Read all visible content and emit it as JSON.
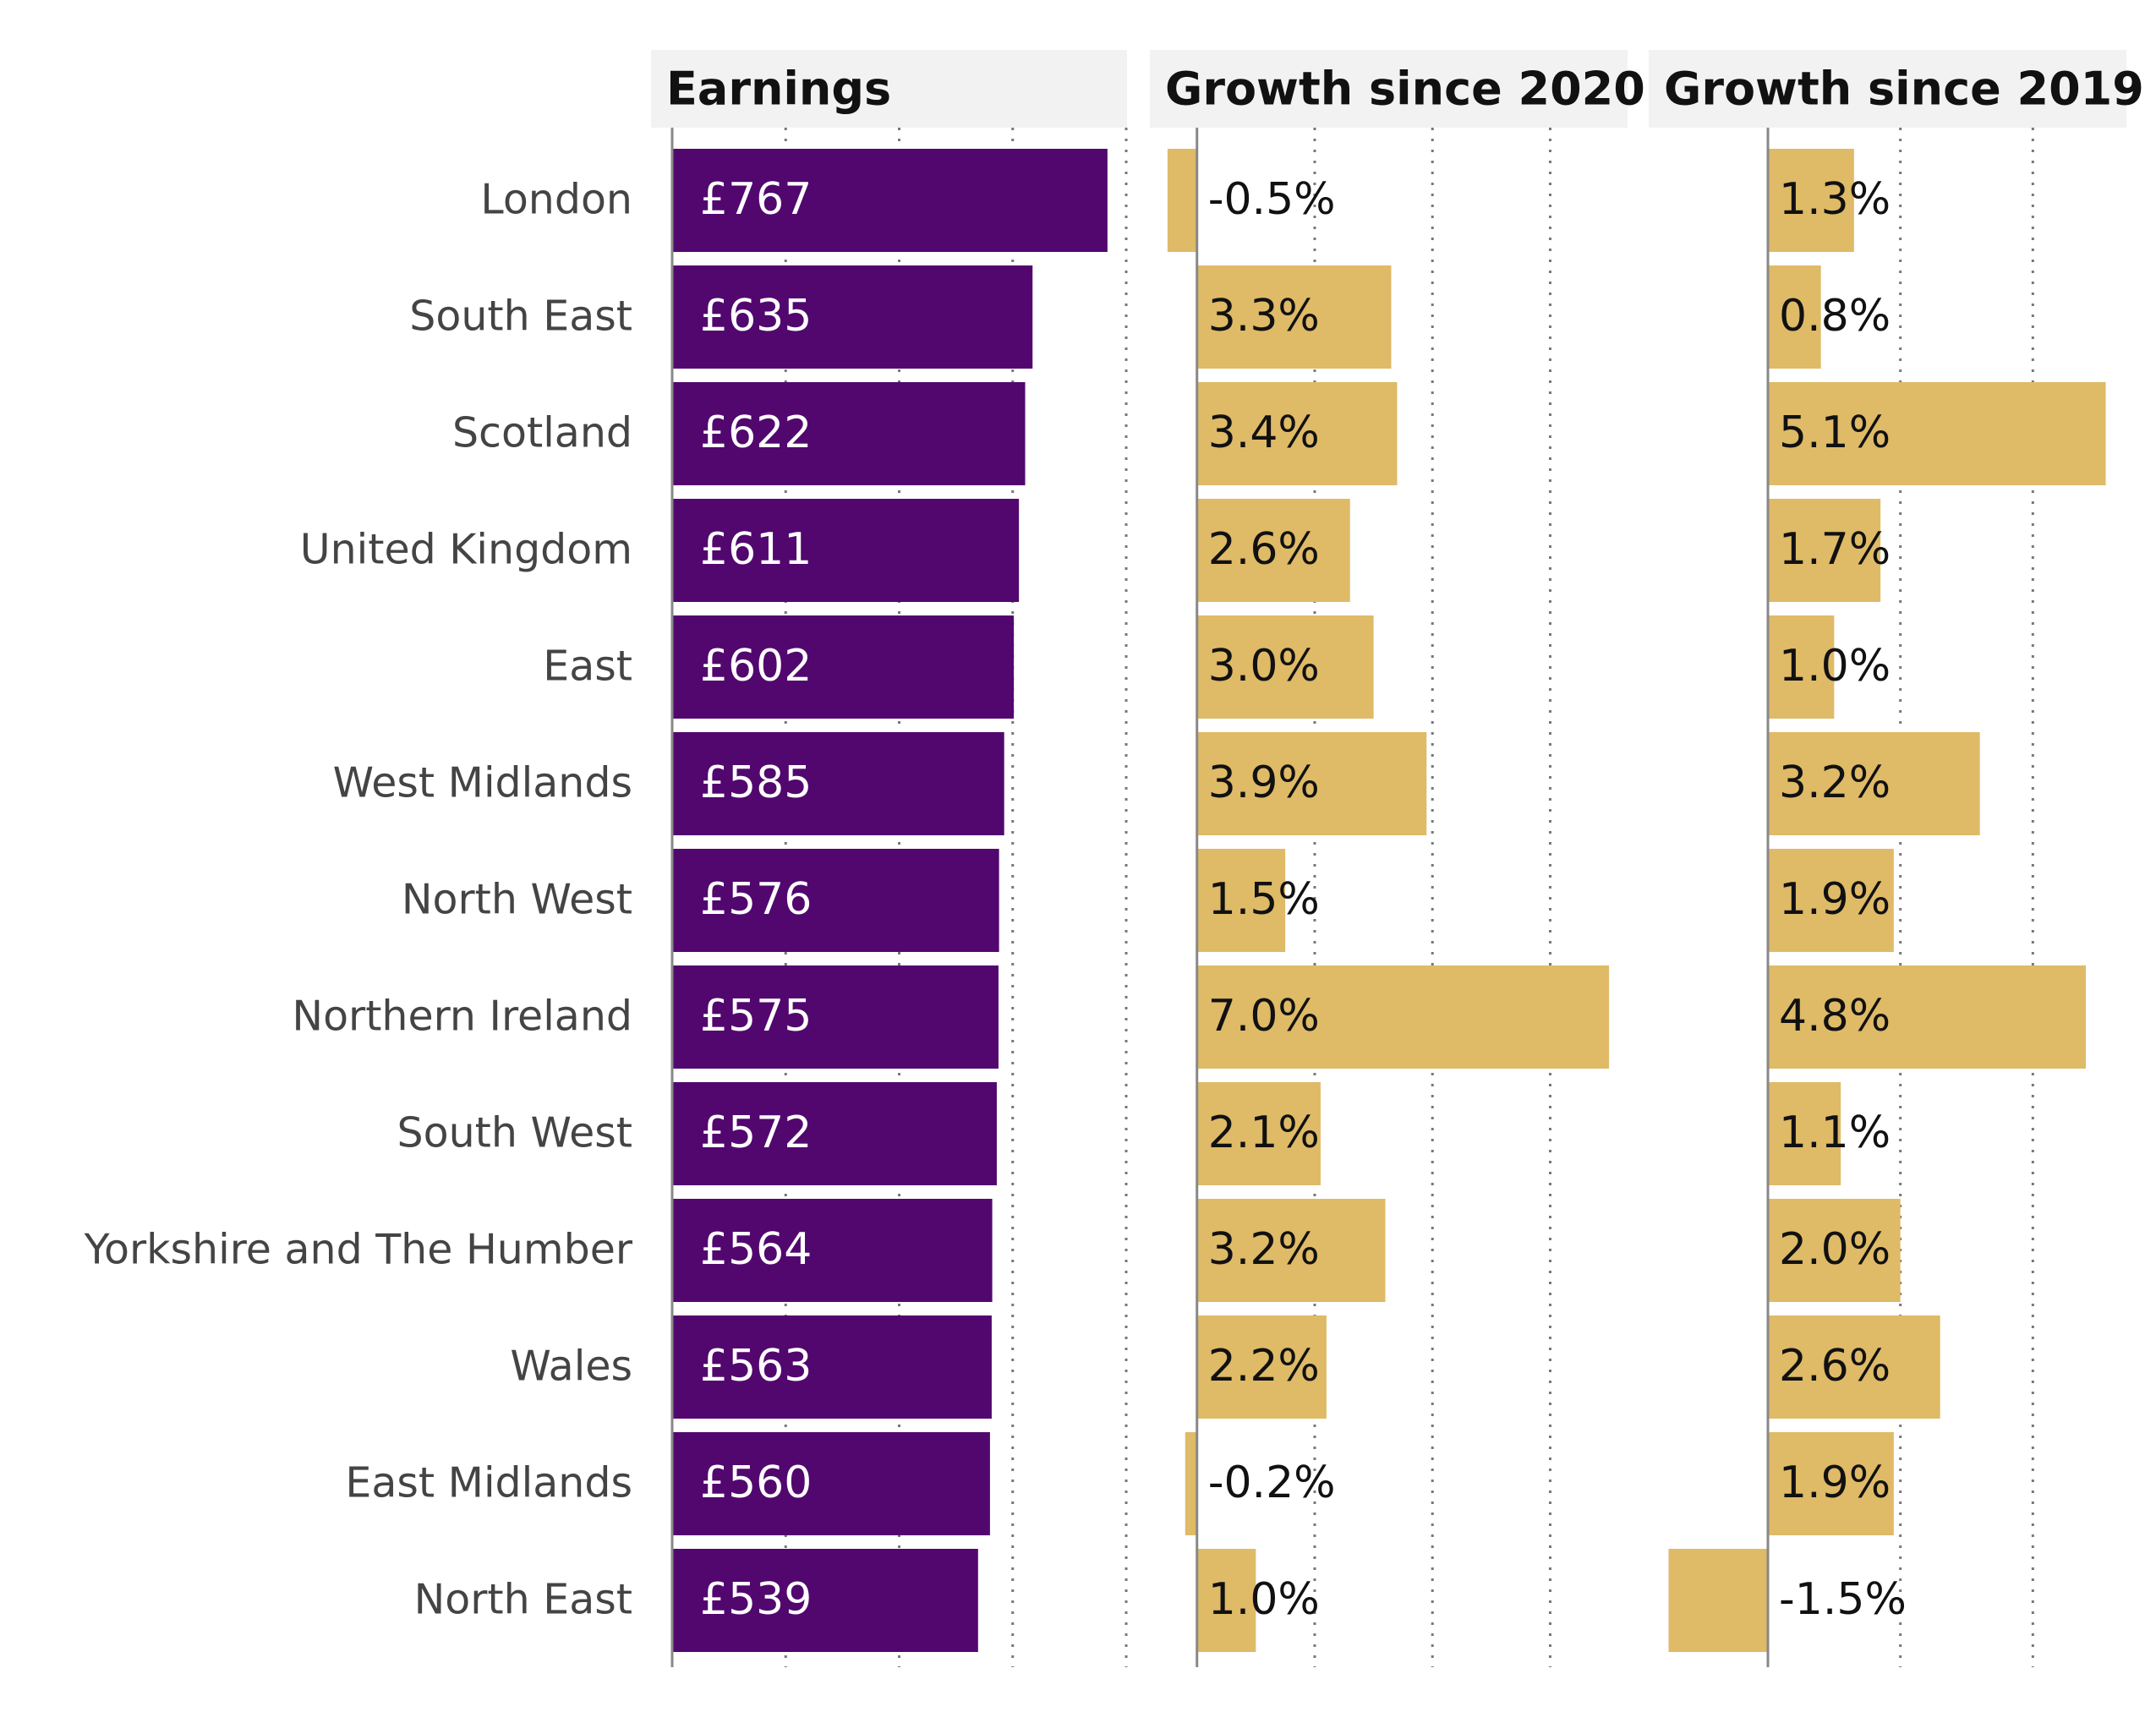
{
  "chart_data": [
    {
      "type": "bar",
      "orientation": "horizontal",
      "title": "Earnings",
      "categories": [
        "London",
        "South East",
        "Scotland",
        "United Kingdom",
        "East",
        "West Midlands",
        "North West",
        "Northern Ireland",
        "South West",
        "Yorkshire and The Humber",
        "Wales",
        "East Midlands",
        "North East"
      ],
      "values": [
        767,
        635,
        622,
        611,
        602,
        585,
        576,
        575,
        572,
        564,
        563,
        560,
        539
      ],
      "value_labels": [
        "£767",
        "£635",
        "£622",
        "£611",
        "£602",
        "£585",
        "£576",
        "£575",
        "£572",
        "£564",
        "£563",
        "£560",
        "£539"
      ],
      "color": "#52076f",
      "label_color": "#ffffff",
      "xlim": [
        0,
        800
      ],
      "xticks": [
        0,
        200,
        400,
        600,
        800
      ],
      "grid": true
    },
    {
      "type": "bar",
      "orientation": "horizontal",
      "title": "Growth since 2020",
      "values": [
        -0.5,
        3.3,
        3.4,
        2.6,
        3.0,
        3.9,
        1.5,
        7.0,
        2.1,
        3.2,
        2.2,
        -0.2,
        1.0
      ],
      "value_labels": [
        "-0.5%",
        "3.3%",
        "3.4%",
        "2.6%",
        "3.0%",
        "3.9%",
        "1.5%",
        "7.0%",
        "2.1%",
        "3.2%",
        "2.2%",
        "-0.2%",
        "1.0%"
      ],
      "color": "#dfba67",
      "label_color": "#111111",
      "xlim": [
        -0.8,
        7.3
      ],
      "xticks": [
        0,
        2,
        4,
        6
      ],
      "grid": true
    },
    {
      "type": "bar",
      "orientation": "horizontal",
      "title": "Growth since 2019",
      "values": [
        1.3,
        0.8,
        5.1,
        1.7,
        1.0,
        3.2,
        1.9,
        4.8,
        1.1,
        2.0,
        2.6,
        1.9,
        -1.5
      ],
      "value_labels": [
        "1.3%",
        "0.8%",
        "5.1%",
        "1.7%",
        "1.0%",
        "3.2%",
        "1.9%",
        "4.8%",
        "1.1%",
        "2.0%",
        "2.6%",
        "1.9%",
        "-1.5%"
      ],
      "color": "#dfba67",
      "label_color": "#111111",
      "xlim": [
        -1.8,
        5.4
      ],
      "xticks": [
        0,
        2,
        4
      ],
      "grid": true
    }
  ]
}
